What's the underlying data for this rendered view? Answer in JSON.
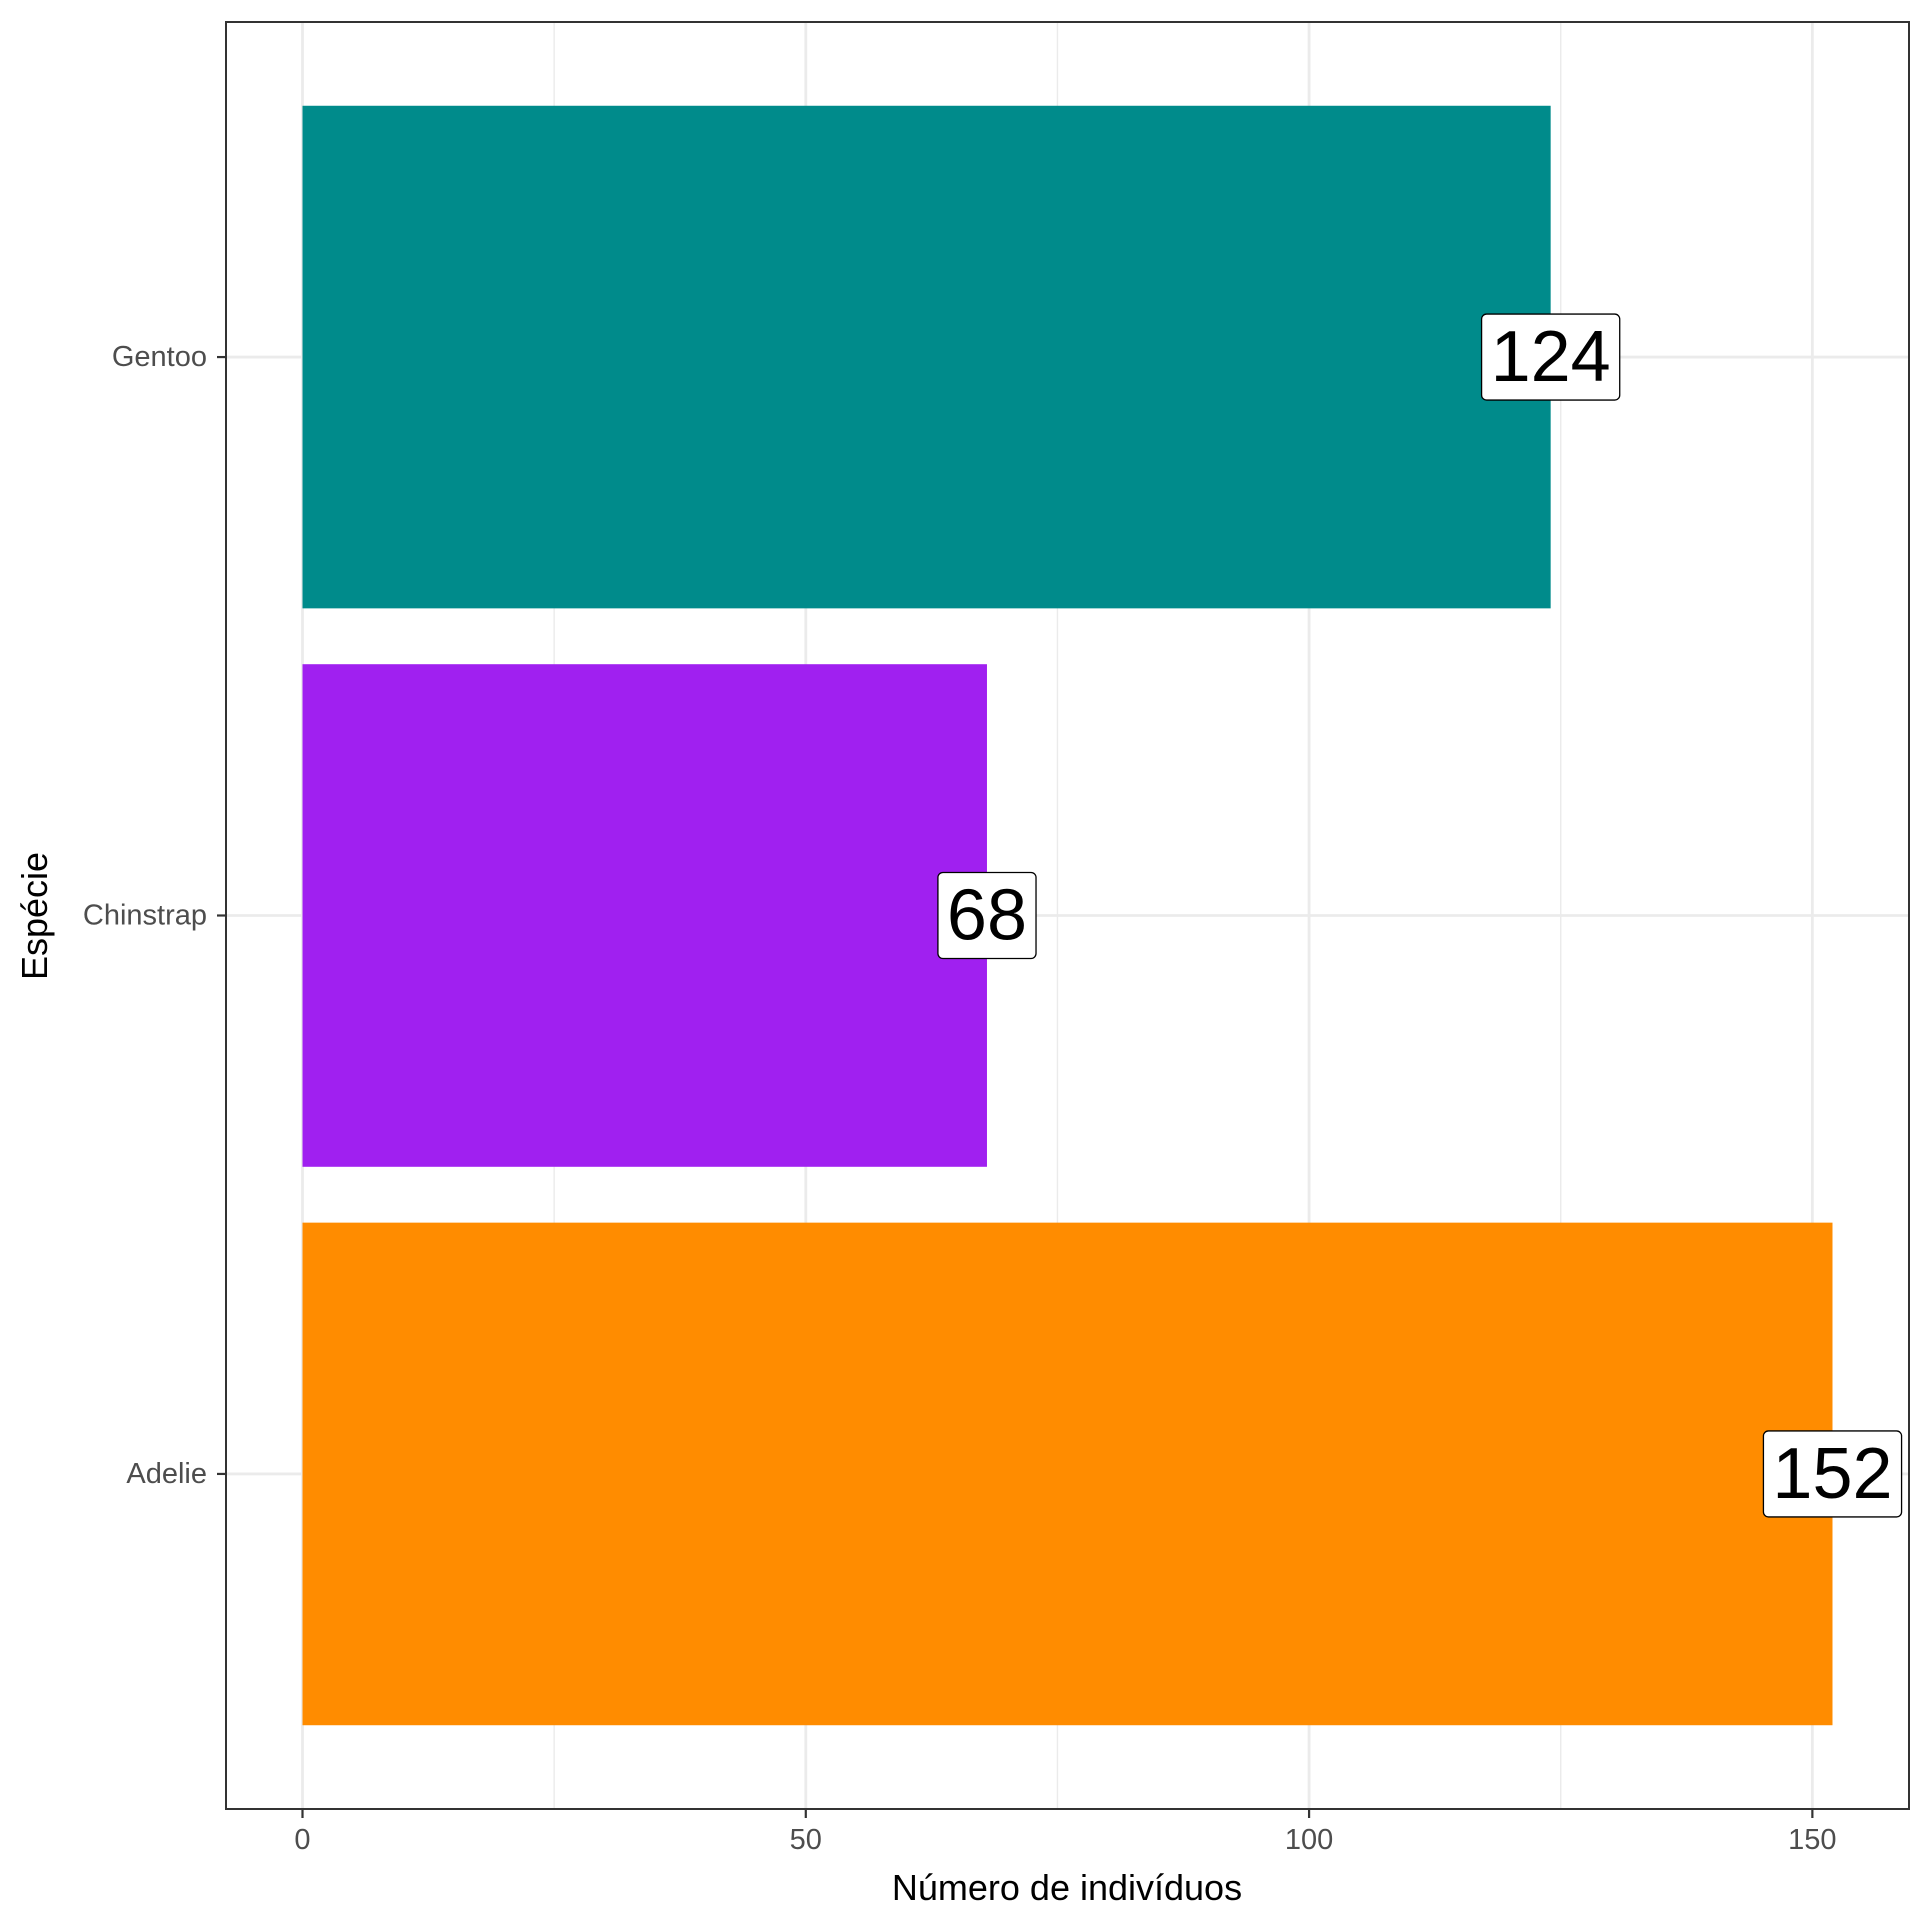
{
  "chart_data": {
    "type": "bar",
    "orientation": "horizontal",
    "categories": [
      "Adelie",
      "Chinstrap",
      "Gentoo"
    ],
    "values": [
      152,
      68,
      124
    ],
    "data_labels": [
      "152",
      "68",
      "124"
    ],
    "colors": [
      "#FF8C00",
      "#A020F0",
      "#008B8B"
    ],
    "xlabel": "Número de indivíduos",
    "ylabel": "Espécie",
    "x_ticks": [
      0,
      50,
      100,
      150
    ],
    "x_tick_labels": [
      "0",
      "50",
      "100",
      "150"
    ],
    "xlim": [
      -7.6,
      159.6
    ],
    "grid": true,
    "legend": "none"
  }
}
